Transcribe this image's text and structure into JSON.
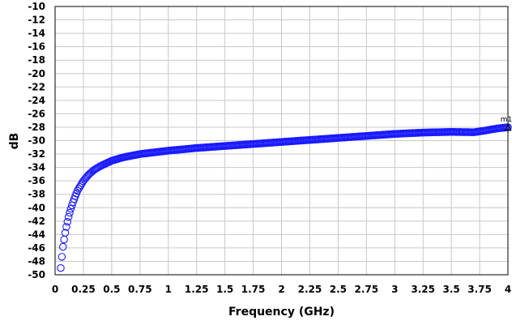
{
  "chart_data": {
    "type": "scatter",
    "title": "",
    "xlabel": "Frequency (GHz)",
    "ylabel": "dB",
    "xlim": [
      0,
      4
    ],
    "ylim": [
      -50,
      -10
    ],
    "x_ticks": [
      "0",
      "0.25",
      "0.5",
      "0.75",
      "1",
      "1.25",
      "1.5",
      "1.75",
      "2",
      "2.25",
      "2.5",
      "2.75",
      "3",
      "3.25",
      "3.5",
      "3.75",
      "4"
    ],
    "y_ticks": [
      "-10",
      "-12",
      "-14",
      "-16",
      "-18",
      "-20",
      "-22",
      "-24",
      "-26",
      "-28",
      "-30",
      "-32",
      "-34",
      "-36",
      "-38",
      "-40",
      "-42",
      "-44",
      "-46",
      "-48",
      "-50"
    ],
    "grid": true,
    "marker_style": "open-circle",
    "series_color": "#1a1aff",
    "curve_knots": [
      [
        0.05,
        -49
      ],
      [
        0.06,
        -47.3
      ],
      [
        0.07,
        -45.8
      ],
      [
        0.08,
        -44.7
      ],
      [
        0.09,
        -43.7
      ],
      [
        0.1,
        -42.8
      ],
      [
        0.12,
        -41.3
      ],
      [
        0.14,
        -40.1
      ],
      [
        0.16,
        -39.1
      ],
      [
        0.18,
        -38.2
      ],
      [
        0.2,
        -37.4
      ],
      [
        0.25,
        -36.0
      ],
      [
        0.3,
        -35.0
      ],
      [
        0.35,
        -34.3
      ],
      [
        0.4,
        -33.8
      ],
      [
        0.5,
        -33.0
      ],
      [
        0.6,
        -32.5
      ],
      [
        0.75,
        -32.0
      ],
      [
        1.0,
        -31.5
      ],
      [
        1.25,
        -31.1
      ],
      [
        1.5,
        -30.8
      ],
      [
        1.75,
        -30.5
      ],
      [
        2.0,
        -30.2
      ],
      [
        2.25,
        -29.9
      ],
      [
        2.5,
        -29.6
      ],
      [
        2.75,
        -29.3
      ],
      [
        3.0,
        -29.0
      ],
      [
        3.25,
        -28.8
      ],
      [
        3.5,
        -28.7
      ],
      [
        3.7,
        -28.75
      ],
      [
        3.8,
        -28.5
      ],
      [
        3.9,
        -28.2
      ],
      [
        4.0,
        -28.0
      ]
    ],
    "marker": {
      "label": "m1",
      "x": 4.0,
      "y": -28.0
    }
  }
}
